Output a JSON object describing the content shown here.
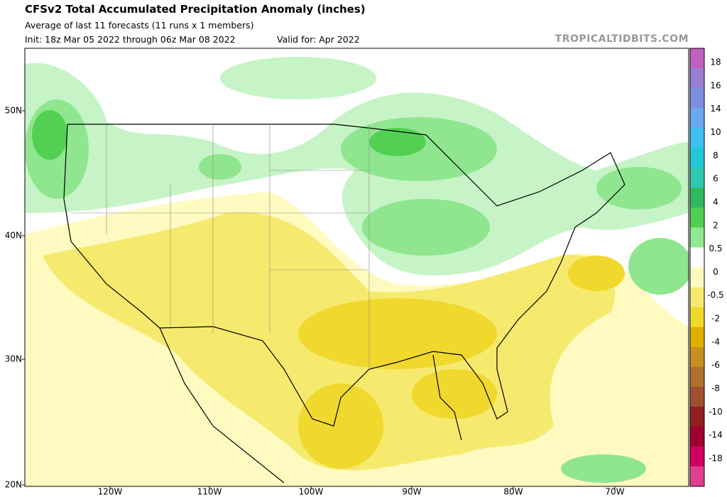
{
  "header": {
    "title": "CFSv2 Total Accumulated Precipitation Anomaly (inches)",
    "subtitle": "Average of last 11 forecasts (11 runs x 1 members)",
    "init": "Init: 18z Mar 05 2022 through 06z Mar 08 2022",
    "valid": "Valid for: Apr 2022",
    "watermark": "TROPICALTIDBITS.COM"
  },
  "map": {
    "lat_labels": [
      "50N",
      "40N",
      "30N",
      "20N"
    ],
    "lon_labels": [
      "120W",
      "110W",
      "100W",
      "90W",
      "80W",
      "70W"
    ]
  },
  "colorbar": {
    "labels": [
      "18",
      "16",
      "14",
      "10",
      "8",
      "6",
      "4",
      "2",
      "0.5",
      "0",
      "-0.5",
      "-2",
      "-4",
      "-6",
      "-8",
      "-10",
      "-14",
      "-18"
    ]
  }
}
